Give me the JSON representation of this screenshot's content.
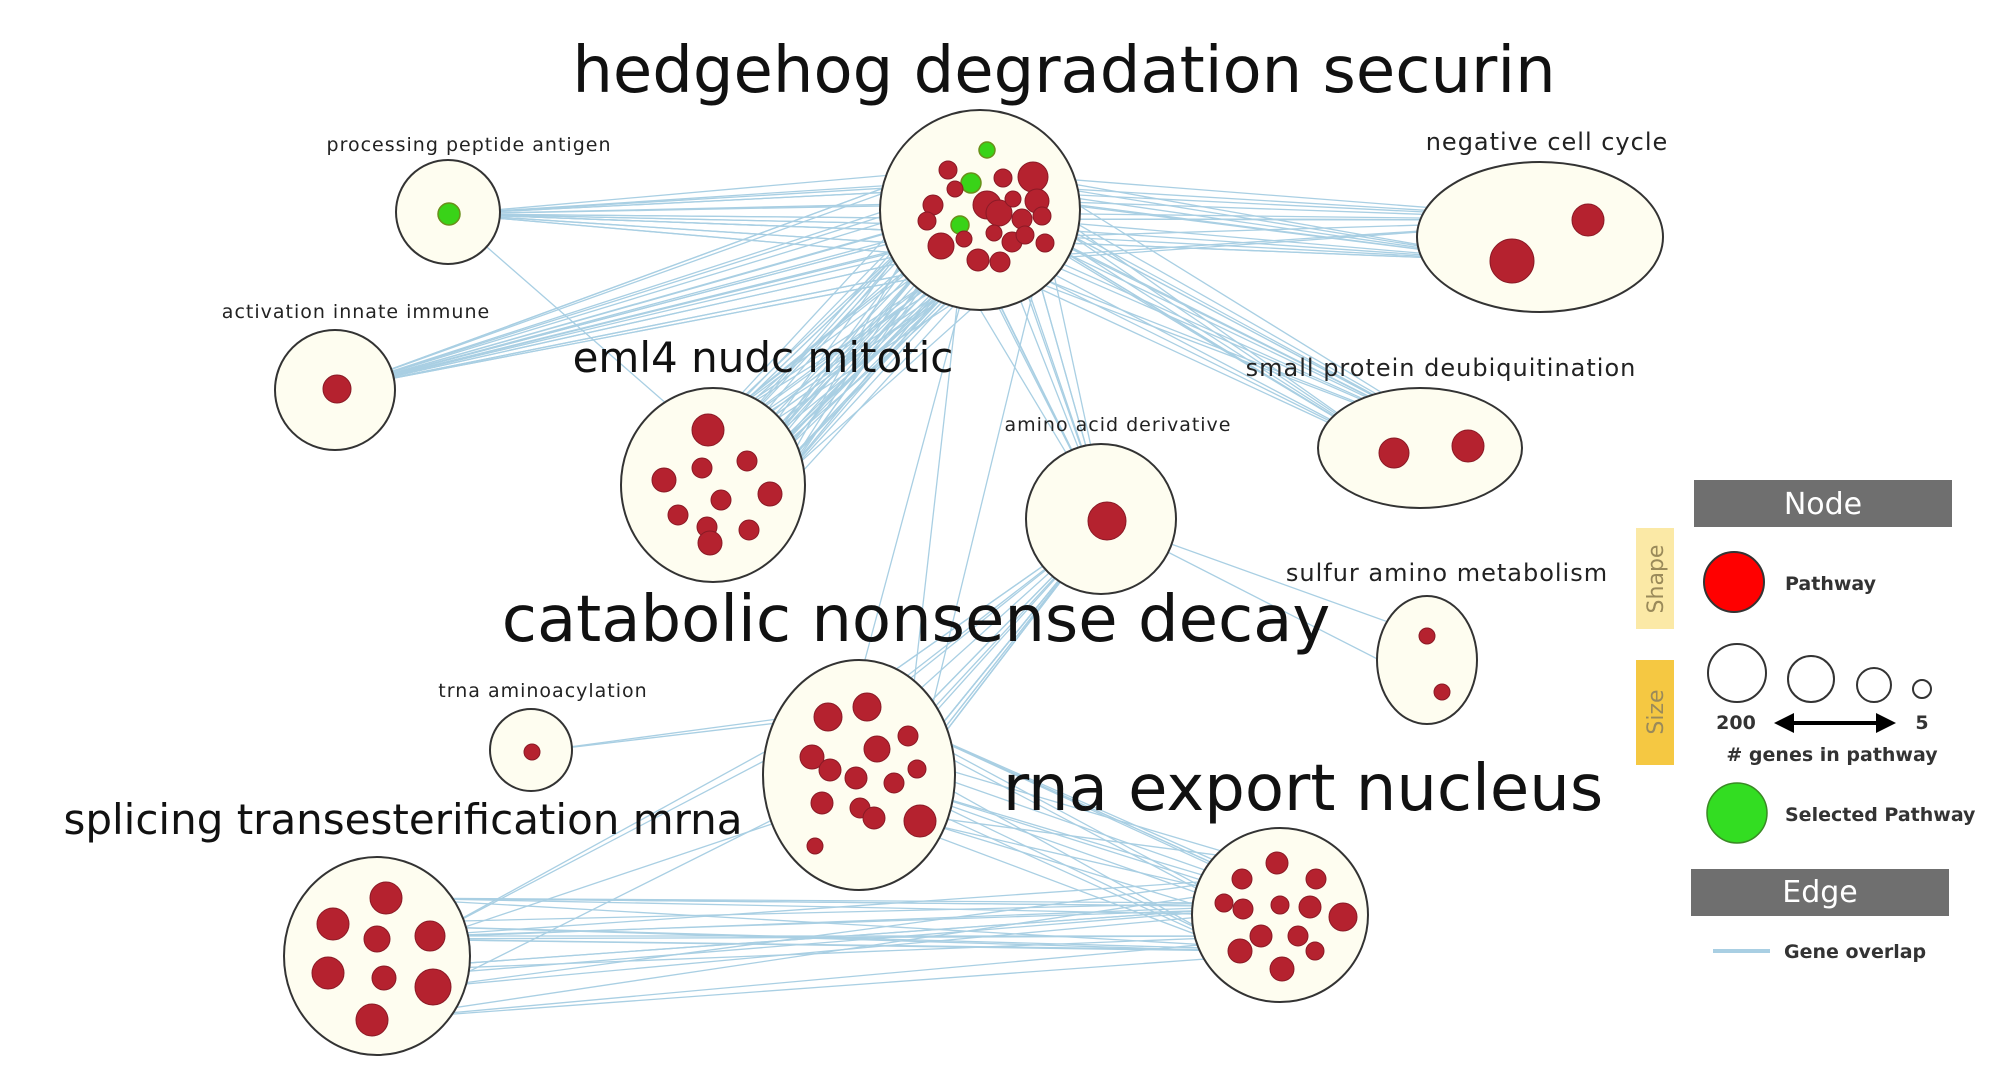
{
  "clusters": [
    {
      "id": "hedgehog",
      "label": "hedgehog degradation securin",
      "label_size": "big"
    },
    {
      "id": "processing",
      "label": "processing peptide antigen",
      "label_size": "tiny"
    },
    {
      "id": "negative",
      "label": "negative cell cycle",
      "label_size": "small"
    },
    {
      "id": "activation",
      "label": "activation innate immune",
      "label_size": "tiny"
    },
    {
      "id": "eml4",
      "label": "eml4 nudc mitotic",
      "label_size": "mid"
    },
    {
      "id": "small_protein",
      "label": "small protein deubiquitination",
      "label_size": "small"
    },
    {
      "id": "amino_acid",
      "label": "amino acid derivative",
      "label_size": "tiny"
    },
    {
      "id": "sulfur",
      "label": "sulfur amino metabolism",
      "label_size": "small"
    },
    {
      "id": "catabolic",
      "label": "catabolic nonsense decay",
      "label_size": "big"
    },
    {
      "id": "trna",
      "label": "trna aminoacylation",
      "label_size": "tiny"
    },
    {
      "id": "splicing",
      "label": "splicing transesterification mrna",
      "label_size": "mid"
    },
    {
      "id": "rna_export",
      "label": "rna export nucleus",
      "label_size": "big"
    }
  ],
  "legend": {
    "node_header": "Node",
    "shape_label": "Shape",
    "size_label": "Size",
    "pathway_label": "Pathway",
    "size_max": "200",
    "size_min": "5",
    "size_caption": "# genes in pathway",
    "selected_label": "Selected Pathway",
    "edge_header": "Edge",
    "edge_label": "Gene overlap"
  },
  "colors": {
    "pathway": "#b5222f",
    "selected": "#39d318",
    "edge": "#a9cfe3",
    "cluster_fill": "#fefdf0",
    "legend_pathway": "#ff0000",
    "legend_selected": "#33dd22"
  }
}
